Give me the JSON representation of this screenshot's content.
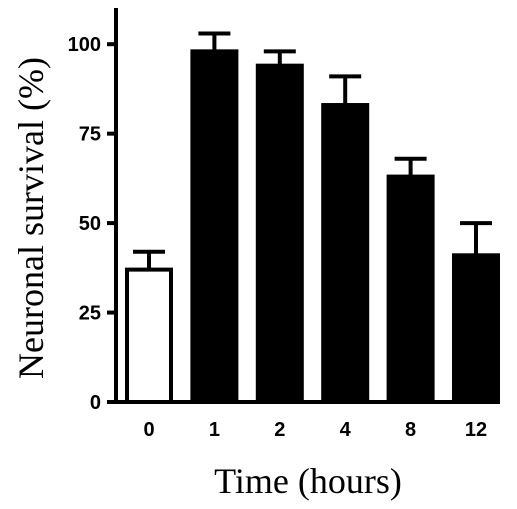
{
  "chart_data": {
    "type": "bar",
    "title": "",
    "xlabel": "Time (hours)",
    "ylabel": "Neuronal survival (%)",
    "categories": [
      "0",
      "1",
      "2",
      "4",
      "8",
      "12"
    ],
    "values": [
      37,
      98,
      94,
      83,
      63,
      41
    ],
    "errors": [
      5,
      5,
      4,
      8,
      5,
      9
    ],
    "bar_fills": [
      "#ffffff",
      "#000000",
      "#000000",
      "#000000",
      "#000000",
      "#000000"
    ],
    "yticks": [
      0,
      25,
      50,
      75,
      100
    ],
    "ylim": [
      0,
      110
    ],
    "grid": false,
    "legend": "none"
  }
}
